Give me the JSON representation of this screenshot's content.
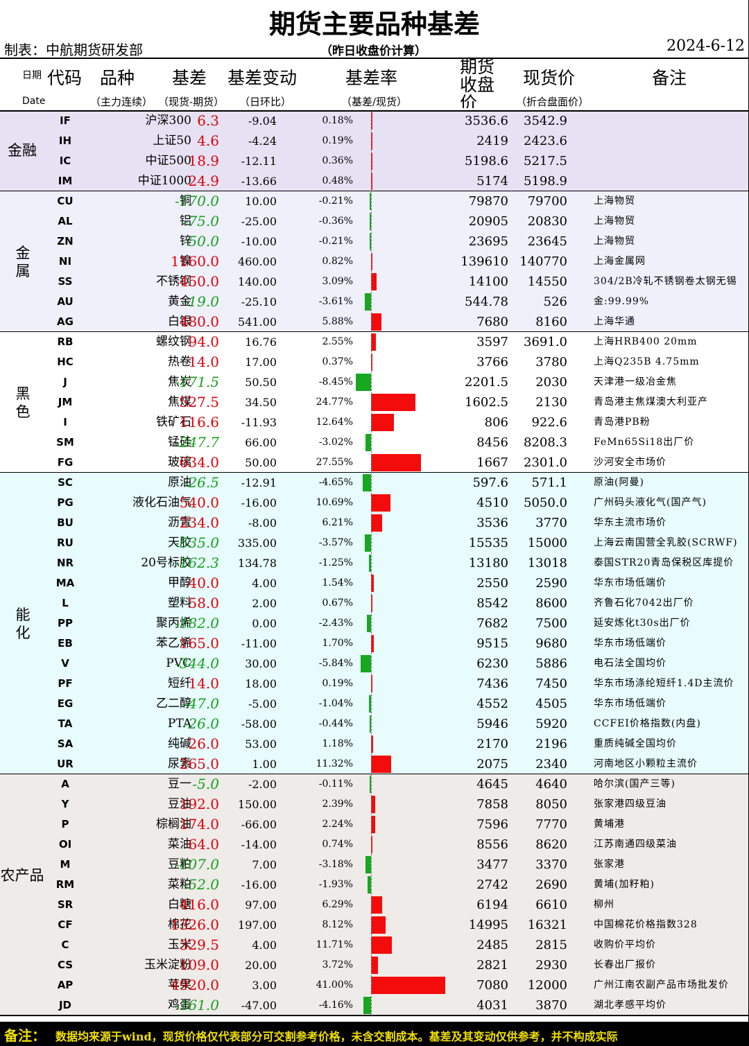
{
  "title": "期货主要品种基差",
  "maker": "制表：中航期货研发部",
  "subtitle": "（昨日收盘价计算）",
  "date": "2024-6-12",
  "header": {
    "date_cn": "日期",
    "date_en": "Date",
    "code": "代码",
    "name": "品种",
    "name_sub": "（主力连续）",
    "basis": "基差",
    "basis_sub": "（现货-期货）",
    "change": "基差变动",
    "change_sub": "（日环比）",
    "rate": "基差率",
    "rate_sub": "（基差/现货）",
    "futures": "期货收盘价",
    "spot": "现货价",
    "spot_sub": "（折合盘面价）",
    "note": "备注"
  },
  "colors": {
    "positive_basis": "#e0000a",
    "negative_basis": "#15a11e",
    "bar_positive": "#f40b0b",
    "bar_negative": "#17a81f",
    "group_bg": [
      "#e6e2f3",
      "#f0f0fb",
      "#ffffff",
      "#e8fbfd",
      "#eeebe8"
    ],
    "footer_bg": "#000000",
    "footer_text": "#f0e000"
  },
  "chart_data": {
    "type": "table",
    "groups": [
      {
        "label": "金融",
        "rows": [
          {
            "code": "IF",
            "name": "沪深300",
            "basis": "6.3",
            "change": "-9.04",
            "rate": "0.18%",
            "futures": "3536.6",
            "spot": "3542.9",
            "note": ""
          },
          {
            "code": "IH",
            "name": "上证50",
            "basis": "4.6",
            "change": "-4.24",
            "rate": "0.19%",
            "futures": "2419",
            "spot": "2423.6",
            "note": ""
          },
          {
            "code": "IC",
            "name": "中证500",
            "basis": "18.9",
            "change": "-12.11",
            "rate": "0.36%",
            "futures": "5198.6",
            "spot": "5217.5",
            "note": ""
          },
          {
            "code": "IM",
            "name": "中证1000",
            "basis": "24.9",
            "change": "-13.66",
            "rate": "0.48%",
            "futures": "5174",
            "spot": "5198.9",
            "note": ""
          }
        ]
      },
      {
        "label": "金属",
        "rows": [
          {
            "code": "CU",
            "name": "铜",
            "basis": "-170.0",
            "change": "10.00",
            "rate": "-0.21%",
            "futures": "79870",
            "spot": "79700",
            "note": "上海物贸"
          },
          {
            "code": "AL",
            "name": "铝",
            "basis": "-75.0",
            "change": "-25.00",
            "rate": "-0.36%",
            "futures": "20905",
            "spot": "20830",
            "note": "上海物贸"
          },
          {
            "code": "ZN",
            "name": "锌",
            "basis": "-50.0",
            "change": "-10.00",
            "rate": "-0.21%",
            "futures": "23695",
            "spot": "23645",
            "note": "上海物贸"
          },
          {
            "code": "NI",
            "name": "镍",
            "basis": "1160.0",
            "change": "460.00",
            "rate": "0.82%",
            "futures": "139610",
            "spot": "140770",
            "note": "上海金属网"
          },
          {
            "code": "SS",
            "name": "不锈钢",
            "basis": "450.0",
            "change": "140.00",
            "rate": "3.09%",
            "futures": "14100",
            "spot": "14550",
            "note": "304/2B冷轧不锈钢卷太钢无锡"
          },
          {
            "code": "AU",
            "name": "黄金",
            "basis": "-19.0",
            "change": "-25.10",
            "rate": "-3.61%",
            "futures": "544.78",
            "spot": "526",
            "note": "金:99.99%"
          },
          {
            "code": "AG",
            "name": "白银",
            "basis": "480.0",
            "change": "541.00",
            "rate": "5.88%",
            "futures": "7680",
            "spot": "8160",
            "note": "上海华通"
          }
        ]
      },
      {
        "label": "黑色",
        "rows": [
          {
            "code": "RB",
            "name": "螺纹钢",
            "basis": "94.0",
            "change": "16.76",
            "rate": "2.55%",
            "futures": "3597",
            "spot": "3691.0",
            "note": "上海HRB400 20mm"
          },
          {
            "code": "HC",
            "name": "热卷",
            "basis": "14.0",
            "change": "17.00",
            "rate": "0.37%",
            "futures": "3766",
            "spot": "3780",
            "note": "上海Q235B 4.75mm"
          },
          {
            "code": "J",
            "name": "焦炭",
            "basis": "-171.5",
            "change": "50.50",
            "rate": "-8.45%",
            "futures": "2201.5",
            "spot": "2030",
            "note": "天津港一级冶金焦"
          },
          {
            "code": "JM",
            "name": "焦煤",
            "basis": "527.5",
            "change": "34.50",
            "rate": "24.77%",
            "futures": "1602.5",
            "spot": "2130",
            "note": "青岛港主焦煤澳大利亚产"
          },
          {
            "code": "I",
            "name": "铁矿石",
            "basis": "116.6",
            "change": "-11.93",
            "rate": "12.64%",
            "futures": "806",
            "spot": "922.6",
            "note": "青岛港PB粉"
          },
          {
            "code": "SM",
            "name": "锰硅",
            "basis": "-247.7",
            "change": "66.00",
            "rate": "-3.02%",
            "futures": "8456",
            "spot": "8208.3",
            "note": "FeMn65Si18出厂价"
          },
          {
            "code": "FG",
            "name": "玻璃",
            "basis": "634.0",
            "change": "50.00",
            "rate": "27.55%",
            "futures": "1667",
            "spot": "2301.0",
            "note": "沙河安全市场价"
          }
        ]
      },
      {
        "label": "能化",
        "rows": [
          {
            "code": "SC",
            "name": "原油",
            "basis": "-26.5",
            "change": "-12.91",
            "rate": "-4.65%",
            "futures": "597.6",
            "spot": "571.1",
            "note": "原油(阿曼)"
          },
          {
            "code": "PG",
            "name": "液化石油气",
            "basis": "540.0",
            "change": "-16.00",
            "rate": "10.69%",
            "futures": "4510",
            "spot": "5050.0",
            "note": "广州码头液化气(国产气)"
          },
          {
            "code": "BU",
            "name": "沥青",
            "basis": "234.0",
            "change": "-8.00",
            "rate": "6.21%",
            "futures": "3536",
            "spot": "3770",
            "note": "华东主流市场价"
          },
          {
            "code": "RU",
            "name": "天胶",
            "basis": "-535.0",
            "change": "335.00",
            "rate": "-3.57%",
            "futures": "15535",
            "spot": "15000",
            "note": "上海云南国营全乳胶(SCRWF)"
          },
          {
            "code": "NR",
            "name": "20号标胶",
            "basis": "-162.3",
            "change": "134.78",
            "rate": "-1.25%",
            "futures": "13180",
            "spot": "13018",
            "note": "泰国STR20青岛保税区库提价"
          },
          {
            "code": "MA",
            "name": "甲醇",
            "basis": "40.0",
            "change": "4.00",
            "rate": "1.54%",
            "futures": "2550",
            "spot": "2590",
            "note": "华东市场低端价"
          },
          {
            "code": "L",
            "name": "塑料",
            "basis": "58.0",
            "change": "2.00",
            "rate": "0.67%",
            "futures": "8542",
            "spot": "8600",
            "note": "齐鲁石化7042出厂价"
          },
          {
            "code": "PP",
            "name": "聚丙烯",
            "basis": "-182.0",
            "change": "0.00",
            "rate": "-2.43%",
            "futures": "7682",
            "spot": "7500",
            "note": "延安炼化t30s出厂价"
          },
          {
            "code": "EB",
            "name": "苯乙烯",
            "basis": "165.0",
            "change": "-11.00",
            "rate": "1.70%",
            "futures": "9515",
            "spot": "9680",
            "note": "华东市场低端价"
          },
          {
            "code": "V",
            "name": "PVC",
            "basis": "-344.0",
            "change": "30.00",
            "rate": "-5.84%",
            "futures": "6230",
            "spot": "5886",
            "note": "电石法全国均价"
          },
          {
            "code": "PF",
            "name": "短纤",
            "basis": "14.0",
            "change": "18.00",
            "rate": "0.19%",
            "futures": "7436",
            "spot": "7450",
            "note": "华东市场涤纶短纤1.4D主流价"
          },
          {
            "code": "EG",
            "name": "乙二醇",
            "basis": "-47.0",
            "change": "-5.00",
            "rate": "-1.04%",
            "futures": "4552",
            "spot": "4505",
            "note": "华东市场低端价"
          },
          {
            "code": "TA",
            "name": "PTA",
            "basis": "-26.0",
            "change": "-58.00",
            "rate": "-0.44%",
            "futures": "5946",
            "spot": "5920",
            "note": "CCFEI价格指数(内盘)"
          },
          {
            "code": "SA",
            "name": "纯碱",
            "basis": "26.0",
            "change": "53.00",
            "rate": "1.18%",
            "futures": "2170",
            "spot": "2196",
            "note": "重质纯碱全国均价"
          },
          {
            "code": "UR",
            "name": "尿素",
            "basis": "265.0",
            "change": "1.00",
            "rate": "11.32%",
            "futures": "2075",
            "spot": "2340",
            "note": "河南地区小颗粒主流价"
          }
        ]
      },
      {
        "label": "农产品",
        "rows": [
          {
            "code": "A",
            "name": "豆一",
            "basis": "-5.0",
            "change": "-2.00",
            "rate": "-0.11%",
            "futures": "4645",
            "spot": "4640",
            "note": "哈尔滨(国产三等)"
          },
          {
            "code": "Y",
            "name": "豆油",
            "basis": "192.0",
            "change": "150.00",
            "rate": "2.39%",
            "futures": "7858",
            "spot": "8050",
            "note": "张家港四级豆油"
          },
          {
            "code": "P",
            "name": "棕榈油",
            "basis": "174.0",
            "change": "-66.00",
            "rate": "2.24%",
            "futures": "7596",
            "spot": "7770",
            "note": "黄埔港"
          },
          {
            "code": "OI",
            "name": "菜油",
            "basis": "64.0",
            "change": "-14.00",
            "rate": "0.74%",
            "futures": "8556",
            "spot": "8620",
            "note": "江苏南通四级菜油"
          },
          {
            "code": "M",
            "name": "豆粕",
            "basis": "-107.0",
            "change": "7.00",
            "rate": "-3.18%",
            "futures": "3477",
            "spot": "3370",
            "note": "张家港"
          },
          {
            "code": "RM",
            "name": "菜粕",
            "basis": "-52.0",
            "change": "-16.00",
            "rate": "-1.93%",
            "futures": "2742",
            "spot": "2690",
            "note": "黄埔(加籽粕)"
          },
          {
            "code": "SR",
            "name": "白糖",
            "basis": "416.0",
            "change": "97.00",
            "rate": "6.29%",
            "futures": "6194",
            "spot": "6610",
            "note": "柳州"
          },
          {
            "code": "CF",
            "name": "棉花",
            "basis": "1326.0",
            "change": "197.00",
            "rate": "8.12%",
            "futures": "14995",
            "spot": "16321",
            "note": "中国棉花价格指数328"
          },
          {
            "code": "C",
            "name": "玉米",
            "basis": "329.5",
            "change": "4.00",
            "rate": "11.71%",
            "futures": "2485",
            "spot": "2815",
            "note": "收购价平均价"
          },
          {
            "code": "CS",
            "name": "玉米淀粉",
            "basis": "109.0",
            "change": "20.00",
            "rate": "3.72%",
            "futures": "2821",
            "spot": "2930",
            "note": "长春出厂报价"
          },
          {
            "code": "AP",
            "name": "苹果",
            "basis": "4920.0",
            "change": "3.00",
            "rate": "41.00%",
            "futures": "7080",
            "spot": "12000",
            "note": "广州江南农副产品市场批发价"
          },
          {
            "code": "JD",
            "name": "鸡蛋",
            "basis": "-161.0",
            "change": "-47.00",
            "rate": "-4.16%",
            "futures": "4031",
            "spot": "3870",
            "note": "湖北孝感平均价"
          }
        ]
      }
    ]
  },
  "footer": {
    "label": "备注：",
    "text": "数据均来源于wind，现货价格仅代表部分可交割参考价格，未含交割成本。基差及其变动仅供参考，并不构成实际"
  }
}
